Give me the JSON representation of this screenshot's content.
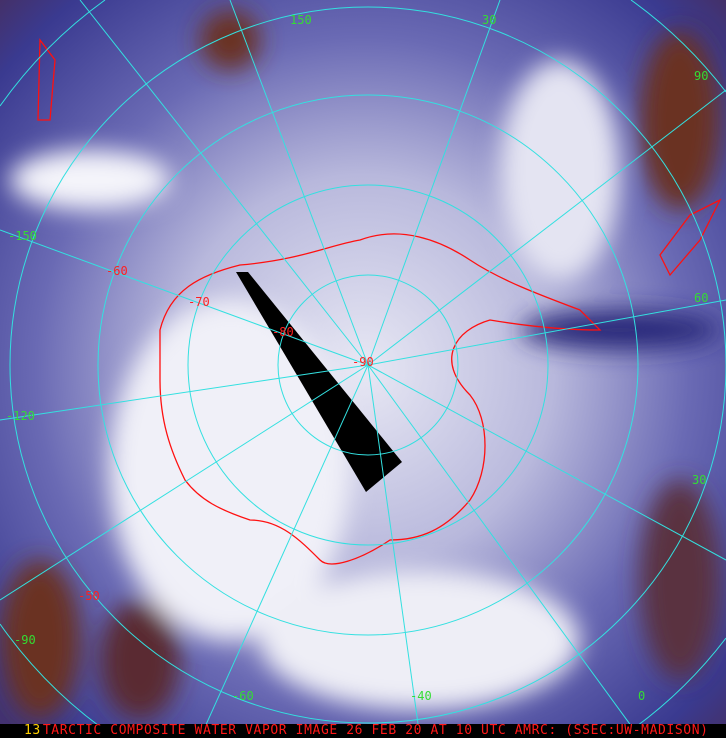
{
  "image": {
    "caption": "TARCTIC COMPOSITE WATER VAPOR IMAGE 26 FEB 20 AT 10 UTC AMRC: (SSEC:UW-MADISON)",
    "frame_number": "13",
    "colors": {
      "grid": "#33e0e0",
      "coastline": "#ff1010",
      "longitude_labels": "#33dd33",
      "latitude_labels": "#ff2020",
      "moist": "#f2f2f8",
      "dry": "#2a2a8a",
      "very_dry": "#6a3020"
    },
    "longitude_labels": [
      "150",
      "30",
      "90",
      "-150",
      "60",
      "-120",
      "30",
      "-90",
      "-60",
      "-40",
      "0"
    ],
    "latitude_labels": [
      "-60",
      "-70",
      "-80",
      "-90",
      "-50"
    ]
  }
}
